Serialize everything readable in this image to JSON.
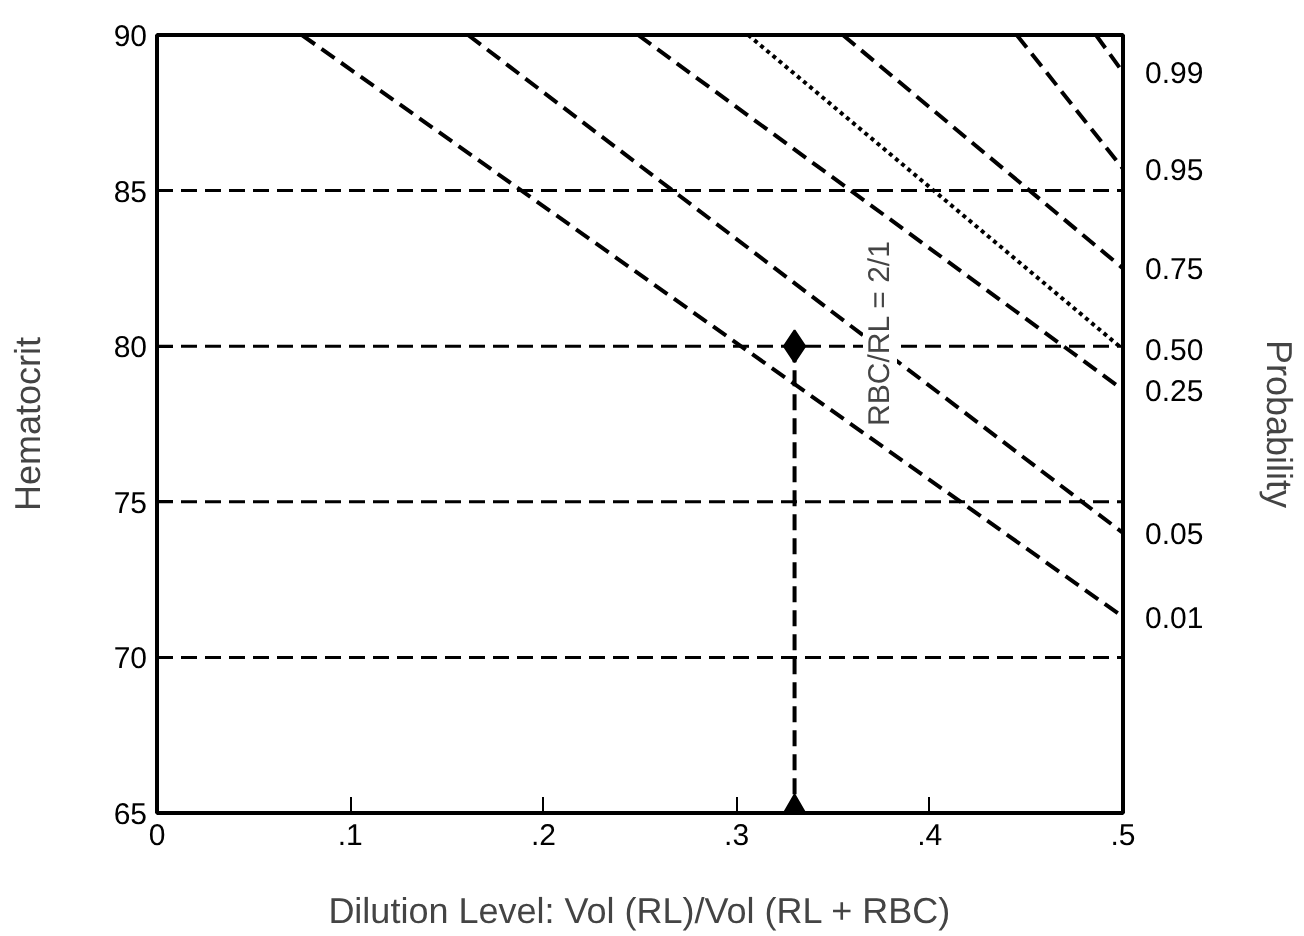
{
  "chart_data": {
    "type": "line",
    "xlabel": "Dilution Level: Vol (RL)/Vol (RL + RBC)",
    "ylabel": "Hematocrit",
    "y2label": "Probability",
    "xlim": [
      0,
      0.5
    ],
    "xticks": [
      0,
      {
        "value": 0.1,
        "label": ".1"
      },
      {
        "value": 0.2,
        "label": ".2"
      },
      {
        "value": 0.3,
        "label": ".3"
      },
      {
        "value": 0.4,
        "label": ".4"
      },
      {
        "value": 0.5,
        "label": ".5"
      }
    ],
    "ylim": [
      65,
      90
    ],
    "yticks": [
      65,
      70,
      75,
      80,
      85,
      90
    ],
    "grid": false,
    "line_style": "dashed",
    "series": [
      {
        "name": "0.01",
        "color": "#000000",
        "x": [
          0.075,
          0.5
        ],
        "values": [
          90,
          71.3
        ]
      },
      {
        "name": "0.05",
        "color": "#000000",
        "x": [
          0.161,
          0.5
        ],
        "values": [
          90,
          74.0
        ]
      },
      {
        "name": "0.25",
        "color": "#000000",
        "x": [
          0.249,
          0.5
        ],
        "values": [
          90,
          78.6
        ]
      },
      {
        "name": "0.50",
        "color": "#000000",
        "x": [
          0.306,
          0.5
        ],
        "values": [
          90,
          79.9
        ],
        "line_style": "dotted"
      },
      {
        "name": "0.75",
        "color": "#000000",
        "x": [
          0.355,
          0.5
        ],
        "values": [
          90,
          82.5
        ]
      },
      {
        "name": "0.95",
        "color": "#000000",
        "x": [
          0.445,
          0.5
        ],
        "values": [
          90,
          85.7
        ]
      },
      {
        "name": "0.99",
        "color": "#000000",
        "x": [
          0.486,
          0.5
        ],
        "values": [
          90,
          88.8
        ]
      },
      {
        "color": "#000000",
        "x": [
          0.33,
          0.33
        ],
        "values": [
          80,
          65
        ],
        "line_style": "dashed"
      },
      {
        "type": "scatter",
        "color": "#000000",
        "x": [
          0.33
        ],
        "values": [
          80
        ],
        "marker": "diamond"
      },
      {
        "type": "scatter",
        "color": "#000000",
        "x": [
          0.33
        ],
        "values": [
          65
        ],
        "marker": "triangle"
      }
    ],
    "ref_lines": [
      {
        "axis": "y",
        "value": 85,
        "color": "#000000",
        "line_style": "dashed"
      },
      {
        "axis": "y",
        "value": 80,
        "color": "#000000",
        "line_style": "dashed"
      },
      {
        "axis": "y",
        "value": 75,
        "color": "#000000",
        "line_style": "dashed"
      },
      {
        "axis": "y",
        "value": 70,
        "color": "#000000",
        "line_style": "dashed"
      }
    ],
    "annotations": [
      "RBC/RL = 2/1"
    ]
  }
}
